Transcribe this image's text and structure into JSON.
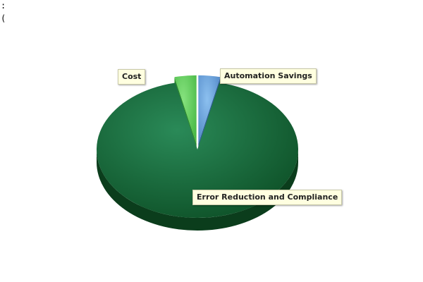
{
  "corner_text": [
    ":",
    "("
  ],
  "chart_data": {
    "type": "pie",
    "categories": [
      "Automation Savings",
      "Error Reduction and Compliance",
      "Cost"
    ],
    "values": [
      3.5,
      93,
      3.5
    ],
    "colors": [
      "#6aa6e0",
      "#1f7a45",
      "#6fd66a"
    ],
    "legend": "none",
    "three_d": true
  }
}
